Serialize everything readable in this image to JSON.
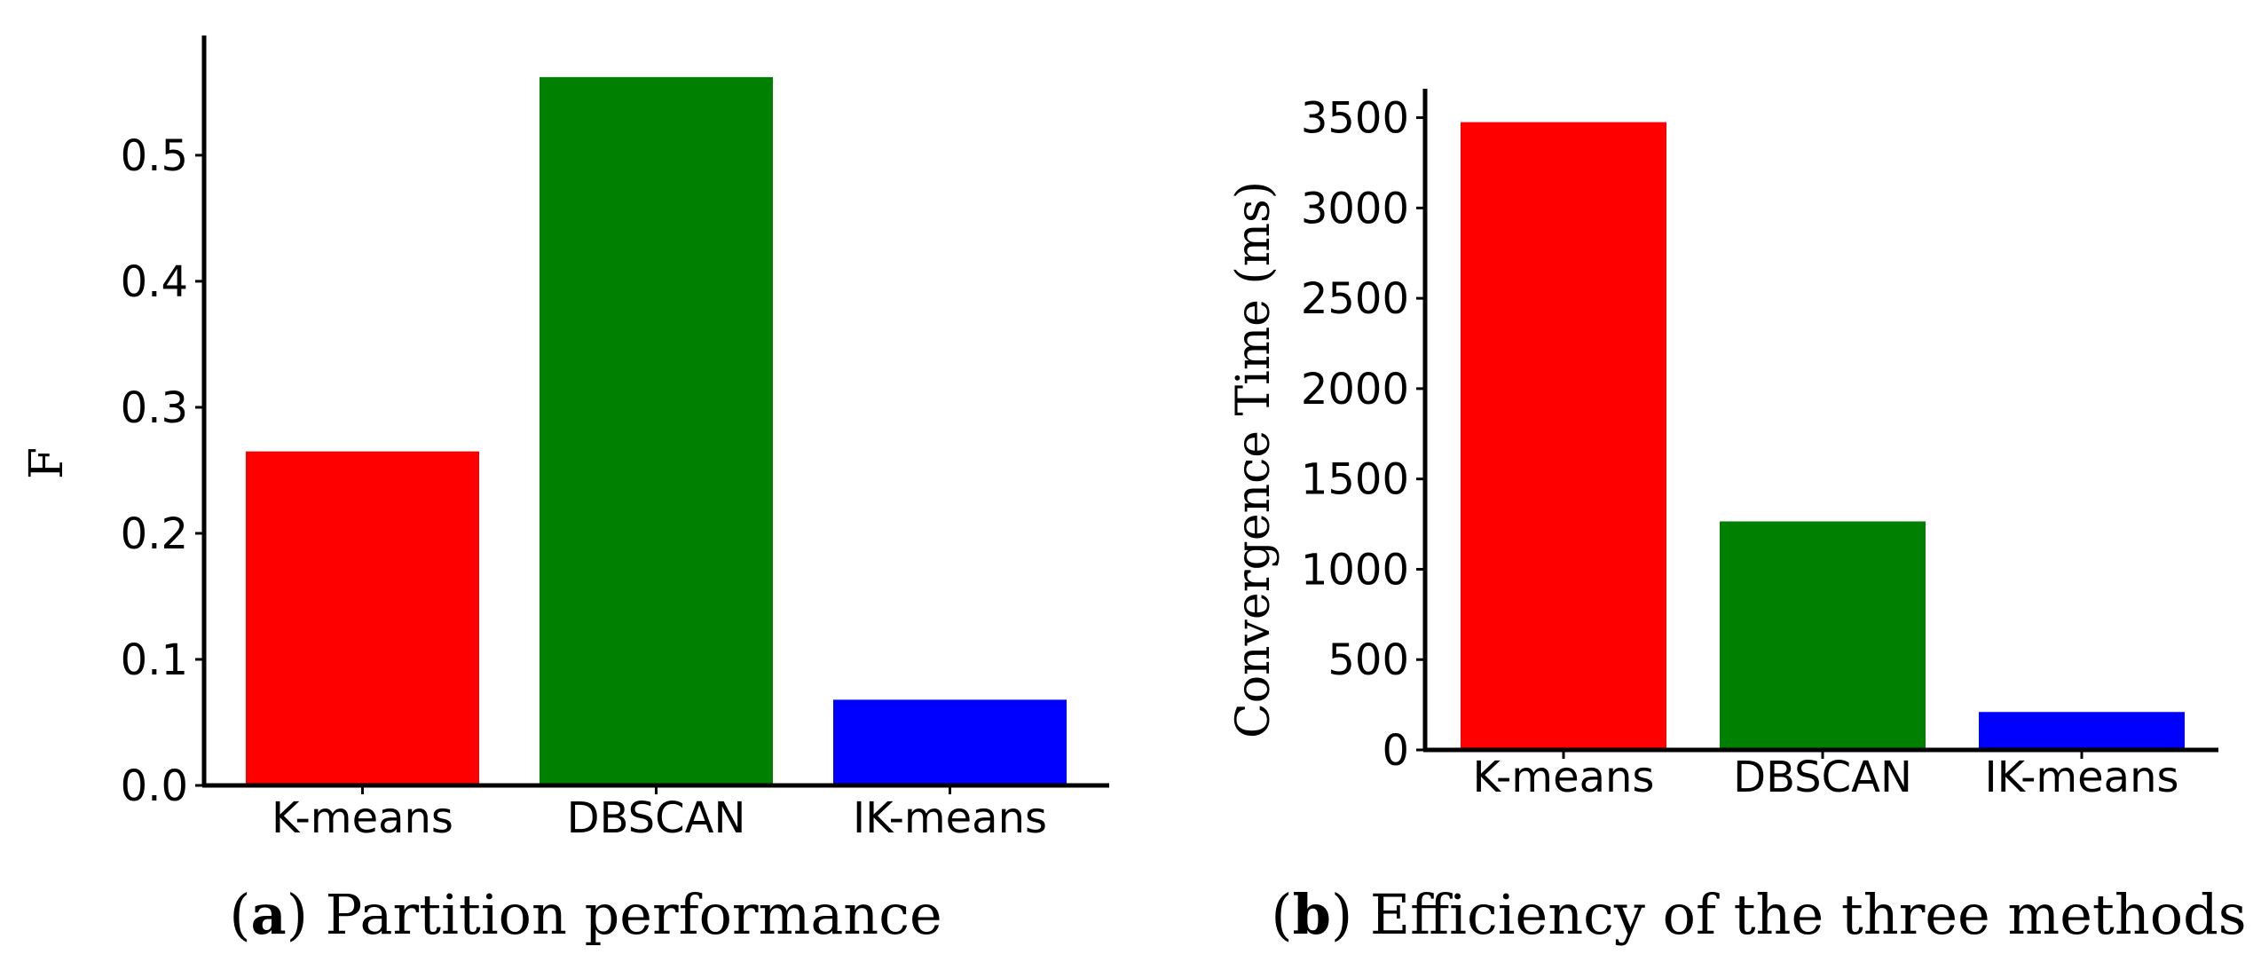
{
  "chart_data": [
    {
      "type": "bar",
      "categories": [
        "K-means",
        "DBSCAN",
        "IK-means"
      ],
      "values": [
        0.265,
        0.562,
        0.068
      ],
      "colors": [
        "#ff0000",
        "#008000",
        "#0000ff"
      ],
      "ylabel": "F",
      "ylim": [
        0,
        0.595
      ],
      "yticks": [
        0.0,
        0.1,
        0.2,
        0.3,
        0.4,
        0.5
      ],
      "ytick_labels": [
        "0.0",
        "0.1",
        "0.2",
        "0.3",
        "0.4",
        "0.5"
      ],
      "caption_letter": "a",
      "caption_text": "Partition performance",
      "grid": false
    },
    {
      "type": "bar",
      "categories": [
        "K-means",
        "DBSCAN",
        "IK-means"
      ],
      "values": [
        3475,
        1265,
        210
      ],
      "colors": [
        "#ff0000",
        "#008000",
        "#0000ff"
      ],
      "ylabel": "Convergence Time (ms)",
      "ylim": [
        0,
        3660
      ],
      "yticks": [
        0,
        500,
        1000,
        1500,
        2000,
        2500,
        3000,
        3500
      ],
      "ytick_labels": [
        "0",
        "500",
        "1000",
        "1500",
        "2000",
        "2500",
        "3000",
        "3500"
      ],
      "caption_letter": "b",
      "caption_text": "Efficiency of the three methods",
      "grid": false
    }
  ]
}
